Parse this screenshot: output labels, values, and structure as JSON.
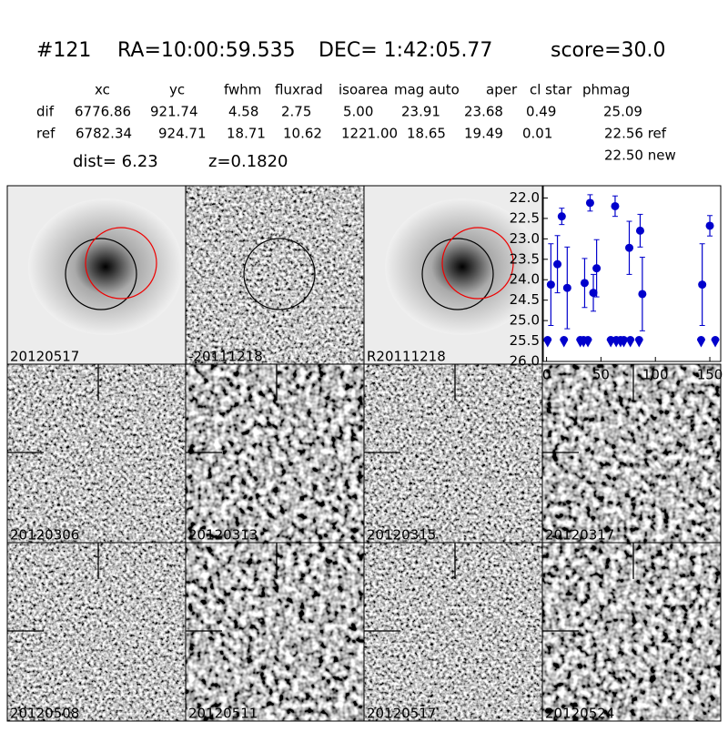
{
  "header": {
    "id": "#121",
    "ra": "RA=10:00:59.535",
    "dec": "DEC= 1:42:05.77",
    "score": "score=30.0"
  },
  "table": {
    "columns": [
      "xc",
      "yc",
      "fwhm",
      "fluxrad",
      "isoarea",
      "mag auto",
      "aper",
      "cl star",
      "phmag"
    ],
    "rows": [
      {
        "label": "dif",
        "cells": [
          "6776.86",
          "921.74",
          "4.58",
          "2.75",
          "5.00",
          "23.91",
          "23.68",
          "0.49",
          "25.09"
        ]
      },
      {
        "label": "ref",
        "cells": [
          "6782.34",
          "924.71",
          "18.71",
          "10.62",
          "1221.00",
          "18.65",
          "19.49",
          "0.01",
          "22.56 ref"
        ]
      }
    ],
    "extra": "22.50 new"
  },
  "dist": "dist=  6.23",
  "z": "z=0.1820",
  "stamps": [
    {
      "label": "20120517"
    },
    {
      "label": "-20111218"
    },
    {
      "label": "R20111218"
    },
    {
      "label": "20120306"
    },
    {
      "label": "20120313"
    },
    {
      "label": "20120315"
    },
    {
      "label": "20120317"
    },
    {
      "label": "20120508"
    },
    {
      "label": "20120511"
    },
    {
      "label": "20120517",
      "color": "#ff0000"
    },
    {
      "label": "20120524"
    }
  ],
  "chart_data": {
    "type": "scatter",
    "xlim": [
      -3,
      160
    ],
    "ylim": [
      26.0,
      21.7
    ],
    "xticks": [
      0,
      50,
      100,
      150
    ],
    "yticks": [
      {
        "value": 22,
        "label": "22.0"
      },
      {
        "value": 22.5,
        "label": "22.5"
      },
      {
        "value": 23,
        "label": "23.0"
      },
      {
        "value": 23.5,
        "label": "23.5"
      },
      {
        "value": 24,
        "label": "24.0"
      },
      {
        "value": 24.5,
        "label": "24.5"
      },
      {
        "value": 25,
        "label": "25.0"
      },
      {
        "value": 25.5,
        "label": "25.5"
      },
      {
        "value": 26,
        "label": "26.0"
      }
    ],
    "series": [
      {
        "color": "#0000cc",
        "marker": "point",
        "x": [
          4,
          10,
          14,
          19,
          35,
          40,
          43,
          46,
          63,
          76,
          86,
          88,
          143,
          150
        ],
        "values": [
          24.12,
          23.62,
          22.45,
          24.2,
          24.08,
          22.12,
          24.32,
          23.72,
          22.2,
          23.22,
          22.8,
          24.35,
          24.12,
          22.68
        ],
        "errors": [
          1.0,
          0.7,
          0.2,
          1.0,
          0.6,
          0.2,
          0.45,
          0.7,
          0.25,
          0.65,
          0.4,
          0.9,
          1.0,
          0.25
        ]
      },
      {
        "color": "#0000cc",
        "marker": "limit",
        "x": [
          1,
          16,
          31,
          34,
          38,
          59,
          64,
          68,
          71,
          77,
          85,
          142,
          155
        ],
        "values": [
          25.5,
          25.5,
          25.5,
          25.5,
          25.5,
          25.5,
          25.5,
          25.5,
          25.5,
          25.5,
          25.5,
          25.5,
          25.5
        ]
      }
    ]
  }
}
